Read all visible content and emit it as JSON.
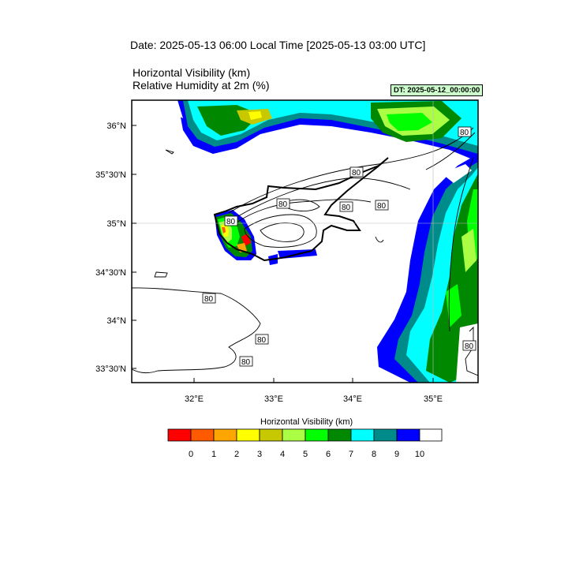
{
  "header": {
    "date_line": "Date: 2025-05-13  06:00 Local Time [2025-05-13  03:00 UTC]",
    "title_line1": "Horizontal Visibility   (km)",
    "title_line2": "Relative Humidity at 2m   (%)",
    "dt_badge": "DT: 2025-05-12_00:00:00"
  },
  "map": {
    "lat_ticks": [
      "36°N",
      "35°30'N",
      "35°N",
      "34°30'N",
      "34°N",
      "33°30'N"
    ],
    "lon_ticks": [
      "32°E",
      "33°E",
      "34°E",
      "35°E"
    ],
    "contour_labels": [
      "80",
      "80",
      "80",
      "80",
      "80",
      "80",
      "80",
      "80",
      "80",
      "80"
    ],
    "colors": {
      "vis_0": "#ff0000",
      "vis_1": "#ff5a00",
      "vis_2": "#ffa500",
      "vis_3": "#ffff00",
      "vis_4": "#c8c800",
      "vis_5": "#aaff44",
      "vis_6": "#00ff00",
      "vis_7": "#008800",
      "vis_8": "#00ffff",
      "vis_9": "#008b8b",
      "vis_10": "#0000ff",
      "vis_gt10": "#ffffff"
    }
  },
  "colorbar": {
    "title": "Horizontal Visibility  (km)",
    "labels": [
      "0",
      "1",
      "2",
      "3",
      "4",
      "5",
      "6",
      "7",
      "8",
      "9",
      "10"
    ]
  }
}
